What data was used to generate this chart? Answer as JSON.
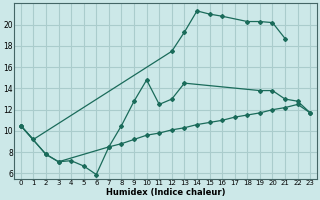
{
  "xlabel": "Humidex (Indice chaleur)",
  "background_color": "#cce8e8",
  "grid_color": "#aacccc",
  "line_color": "#1a6b5a",
  "ylim": [
    5.5,
    22
  ],
  "xlim": [
    -0.5,
    23.5
  ],
  "yticks": [
    6,
    8,
    10,
    12,
    14,
    16,
    18,
    20
  ],
  "xticks": [
    0,
    1,
    2,
    3,
    4,
    5,
    6,
    7,
    8,
    9,
    10,
    11,
    12,
    13,
    14,
    15,
    16,
    17,
    18,
    19,
    20,
    21,
    22,
    23
  ],
  "series1_x": [
    0,
    1,
    12,
    13,
    14,
    15,
    16,
    18,
    19,
    20,
    21
  ],
  "series1_y": [
    10.5,
    9.2,
    17.5,
    19.3,
    21.3,
    21.0,
    20.8,
    20.3,
    20.3,
    20.2,
    18.7
  ],
  "series2_x": [
    0,
    2,
    3,
    4,
    5,
    6,
    7,
    8,
    9,
    10,
    11,
    12,
    13,
    19,
    20,
    21,
    22,
    23
  ],
  "series2_y": [
    10.5,
    7.8,
    7.1,
    7.2,
    6.7,
    5.9,
    8.5,
    10.5,
    12.8,
    14.8,
    12.5,
    13.0,
    14.5,
    13.8,
    13.8,
    13.0,
    12.8,
    11.7
  ],
  "series3_x": [
    0,
    2,
    3,
    7,
    8,
    9,
    10,
    11,
    12,
    13,
    14,
    15,
    16,
    17,
    18,
    19,
    20,
    21,
    22,
    23
  ],
  "series3_y": [
    10.5,
    7.8,
    7.1,
    8.5,
    8.8,
    9.2,
    9.6,
    9.8,
    10.1,
    10.3,
    10.6,
    10.8,
    11.0,
    11.3,
    11.5,
    11.7,
    12.0,
    12.2,
    12.5,
    11.7
  ]
}
